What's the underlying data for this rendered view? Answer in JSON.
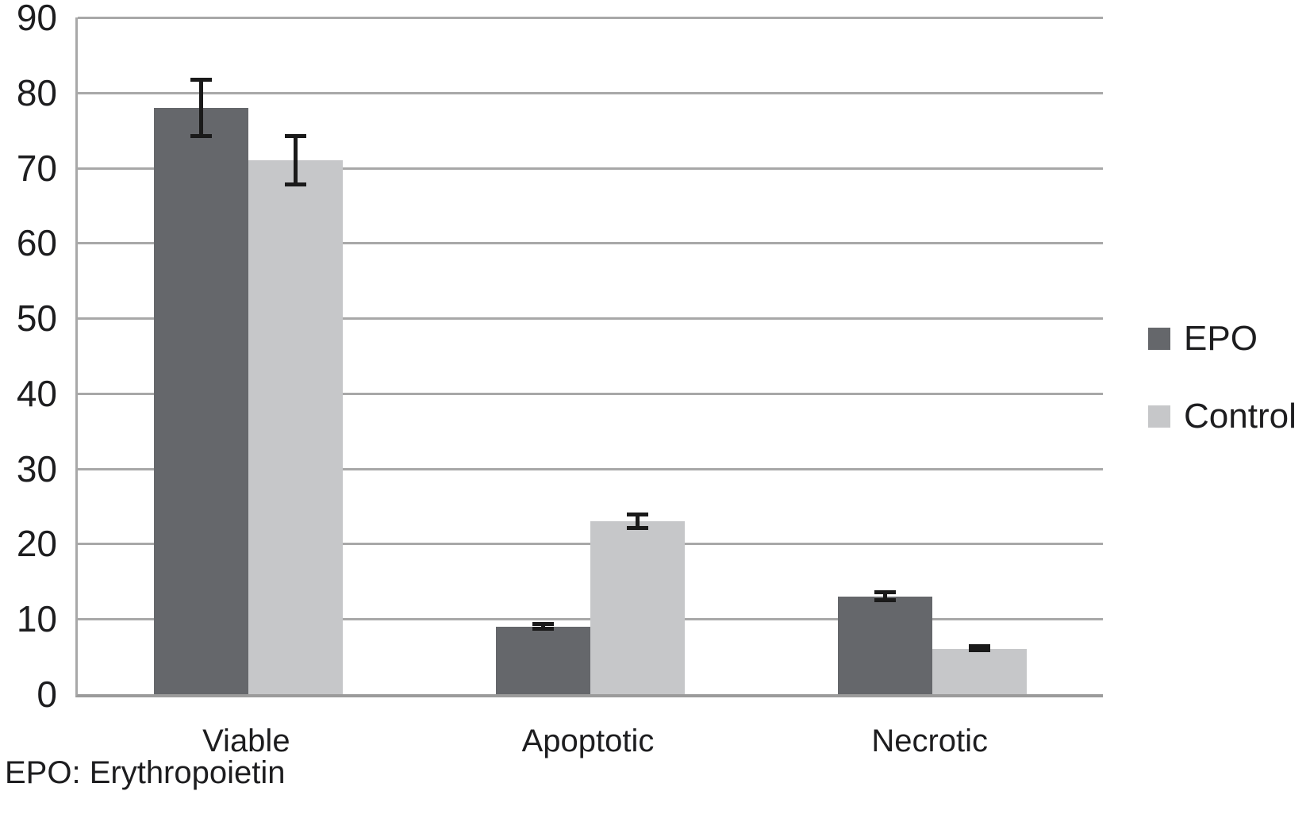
{
  "chart_data": {
    "type": "bar",
    "categories": [
      "Viable",
      "Apoptotic",
      "Necrotic"
    ],
    "series": [
      {
        "name": "EPO",
        "color": "#65676b",
        "values": [
          78,
          9,
          13
        ],
        "errors": [
          4,
          0.6,
          0.8
        ]
      },
      {
        "name": "Control",
        "color": "#c6c7c9",
        "values": [
          71,
          23,
          6
        ],
        "errors": [
          3.5,
          1.2,
          0.4
        ]
      }
    ],
    "title": "",
    "xlabel": "",
    "ylabel": "",
    "ylim": [
      0,
      90
    ],
    "ytick_step": 10,
    "grid": true,
    "legend_position": "right",
    "gridline_color": "#a8a8a8",
    "error_bar_color": "#1a1a1a"
  },
  "legend": {
    "items": [
      {
        "label": "EPO",
        "color": "#65676b"
      },
      {
        "label": "Control",
        "color": "#c6c7c9"
      }
    ]
  },
  "footnote": "EPO: Erythropoietin"
}
